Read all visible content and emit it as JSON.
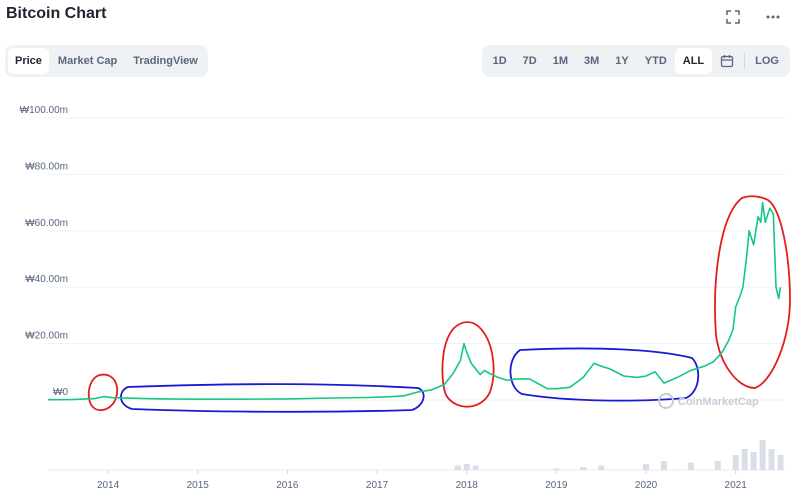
{
  "title": "Bitcoin Chart",
  "icons": {
    "fullscreen": "fullscreen-icon",
    "more": "more-icon",
    "calendar": "calendar-icon"
  },
  "tabs": [
    {
      "label": "Price",
      "active": true
    },
    {
      "label": "Market Cap",
      "active": false
    },
    {
      "label": "TradingView",
      "active": false
    }
  ],
  "ranges": [
    {
      "label": "1D",
      "active": false
    },
    {
      "label": "7D",
      "active": false
    },
    {
      "label": "1M",
      "active": false
    },
    {
      "label": "3M",
      "active": false
    },
    {
      "label": "1Y",
      "active": false
    },
    {
      "label": "YTD",
      "active": false
    },
    {
      "label": "ALL",
      "active": true
    }
  ],
  "log_label": "LOG",
  "watermark": "CoinMarketCap",
  "colors": {
    "line": "#16c784",
    "grid": "#eff2f5",
    "annotation_red": "#e02020",
    "annotation_blue": "#1a1ad6",
    "volume": "#cfd6e4"
  },
  "chart_data": {
    "type": "line",
    "title": "",
    "xlabel": "",
    "ylabel": "",
    "ylim": [
      0,
      100
    ],
    "xlim": [
      2013.33,
      2021.55
    ],
    "y_ticks": [
      "₩0",
      "₩20.00m",
      "₩40.00m",
      "₩60.00m",
      "₩80.00m",
      "₩100.00m"
    ],
    "y_tick_values": [
      0,
      20,
      40,
      60,
      80,
      100
    ],
    "x_ticks": [
      "2014",
      "2015",
      "2016",
      "2017",
      "2018",
      "2019",
      "2020",
      "2021"
    ],
    "x_tick_values": [
      2014,
      2015,
      2016,
      2017,
      2018,
      2019,
      2020,
      2021
    ],
    "grid": true,
    "series": [
      {
        "x": [
          2013.33,
          2013.6,
          2013.85,
          2013.95,
          2014.05,
          2014.3,
          2014.6,
          2015.0,
          2015.5,
          2016.0,
          2016.5,
          2016.9,
          2017.1,
          2017.3,
          2017.45,
          2017.6,
          2017.75,
          2017.85,
          2017.93,
          2017.97,
          2018.0,
          2018.05,
          2018.1,
          2018.15,
          2018.2,
          2018.25,
          2018.35,
          2018.45,
          2018.55,
          2018.7,
          2018.9,
          2019.0,
          2019.15,
          2019.3,
          2019.42,
          2019.5,
          2019.6,
          2019.75,
          2019.9,
          2020.0,
          2020.1,
          2020.2,
          2020.35,
          2020.5,
          2020.65,
          2020.75,
          2020.85,
          2020.92,
          2020.97,
          2021.0,
          2021.05,
          2021.08,
          2021.12,
          2021.15,
          2021.2,
          2021.25,
          2021.28,
          2021.3,
          2021.33,
          2021.38,
          2021.42,
          2021.45,
          2021.48,
          2021.5
        ],
        "y": [
          0.1,
          0.15,
          0.5,
          1.2,
          0.8,
          0.6,
          0.4,
          0.3,
          0.3,
          0.4,
          0.7,
          0.9,
          1.1,
          1.5,
          2.8,
          3.5,
          5.5,
          9.5,
          14.0,
          20.0,
          17.0,
          13.0,
          11.0,
          9.0,
          10.5,
          9.5,
          8.0,
          7.0,
          7.5,
          7.5,
          4.0,
          4.0,
          4.5,
          8.0,
          13.0,
          12.0,
          11.0,
          8.5,
          8.0,
          8.5,
          10.0,
          6.0,
          8.0,
          10.5,
          12.0,
          13.5,
          17.0,
          21.0,
          25.0,
          33.0,
          37.0,
          40.0,
          50.0,
          60.0,
          55.0,
          65.0,
          63.0,
          70.0,
          63.0,
          68.0,
          66.0,
          40.0,
          36.0,
          40.0
        ]
      }
    ],
    "volume": {
      "x": [
        2017.9,
        2018.0,
        2018.1,
        2019.0,
        2019.3,
        2019.5,
        2020.0,
        2020.2,
        2020.5,
        2020.8,
        2021.0,
        2021.1,
        2021.2,
        2021.3,
        2021.4,
        2021.5
      ],
      "y": [
        1.5,
        2.0,
        1.5,
        0.5,
        1.0,
        1.5,
        2.0,
        3.0,
        2.5,
        3.0,
        5.0,
        7.0,
        6.0,
        10.0,
        7.0,
        5.0
      ]
    }
  }
}
